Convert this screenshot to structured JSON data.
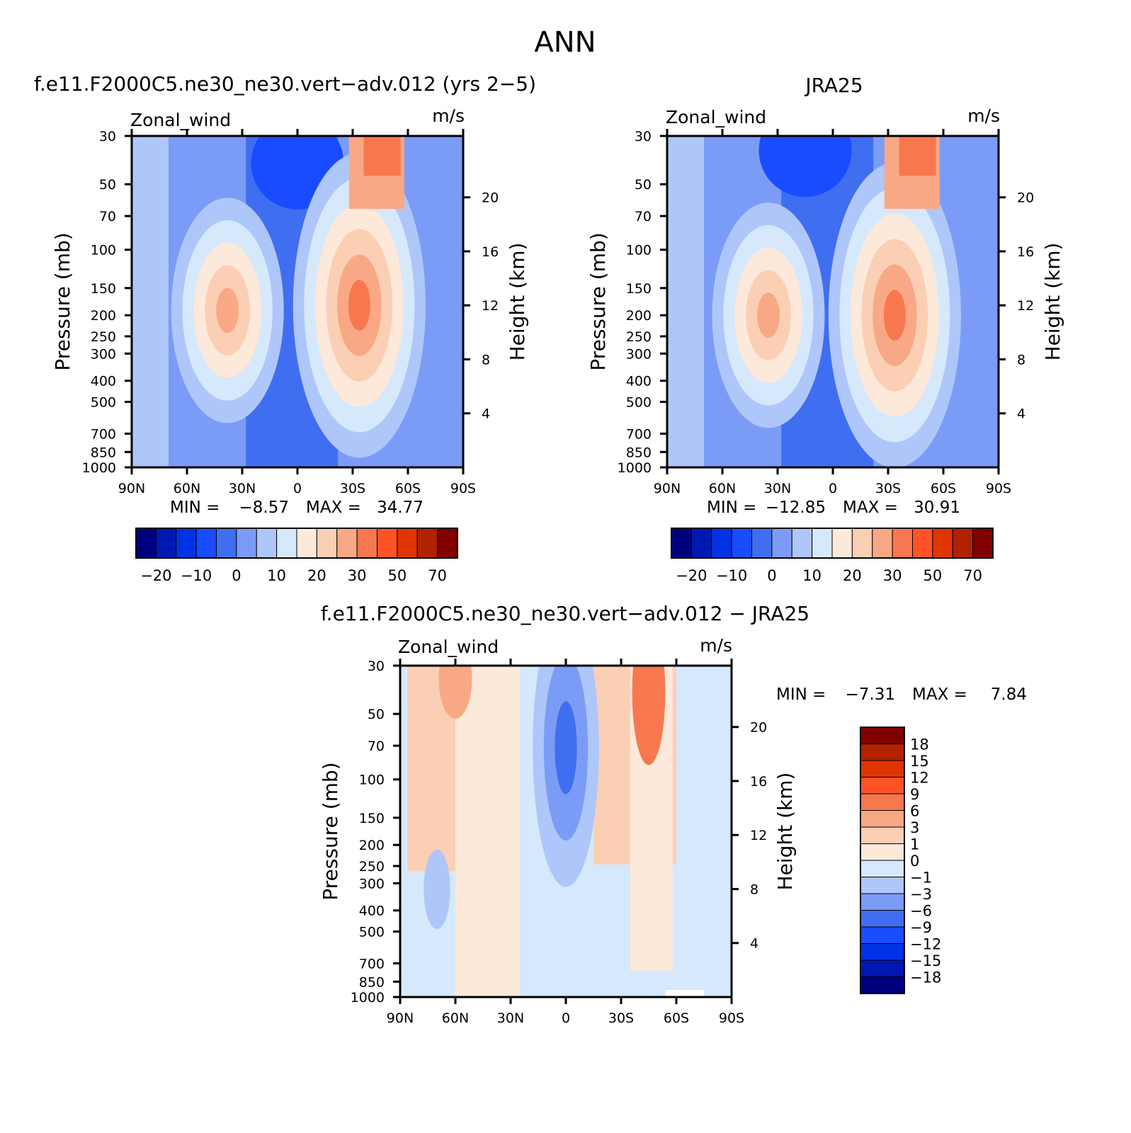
{
  "figure": {
    "main_title": "ANN",
    "colors": {
      "main_levels": [
        "#00007f",
        "#0018b2",
        "#0032e5",
        "#1a4cff",
        "#3f6ef0",
        "#7b9cf6",
        "#afc6fa",
        "#d6e8fb",
        "#fde9da",
        "#fbcfb4",
        "#f9a885",
        "#f7784f",
        "#ff5326",
        "#e03500",
        "#b02200",
        "#800000"
      ],
      "diff_levels": [
        "#00007f",
        "#0018b2",
        "#0032e5",
        "#1a4cff",
        "#3f6ef0",
        "#7b9cf6",
        "#afc6fa",
        "#d6e8fb",
        "#fde9da",
        "#fbcfb4",
        "#f9a885",
        "#f7784f",
        "#ff5326",
        "#e03500",
        "#b02200",
        "#800000"
      ]
    }
  },
  "chart_data": [
    {
      "id": "model",
      "type": "contour",
      "title": "f.e11.F2000C5.ne30_ne30.vert−adv.012 (yrs 2−5)",
      "left_label": "Zonal_wind",
      "right_label": "m/s",
      "xlabel": "",
      "ylabel": "Pressure (mb)",
      "y2label": "Height (km)",
      "x_ticks": [
        "90N",
        "60N",
        "30N",
        "0",
        "30S",
        "60S",
        "90S"
      ],
      "x_range": [
        90,
        -90
      ],
      "y_ticks": [
        30,
        50,
        70,
        100,
        150,
        200,
        250,
        300,
        400,
        500,
        700,
        850,
        1000
      ],
      "y_range": [
        1000,
        30
      ],
      "y_scale": "log",
      "y2_ticks": [
        4,
        8,
        12,
        16,
        20
      ],
      "stats": {
        "min_label": "MIN =",
        "min": "−8.57",
        "max_label": "MAX =",
        "max": "34.77"
      },
      "colorbar": {
        "orientation": "horizontal",
        "labels": [
          "−20",
          "−10",
          "0",
          "10",
          "20",
          "30",
          "50",
          "70"
        ]
      },
      "fields": {
        "jets": [
          {
            "lat": 38,
            "p": 190,
            "value": 22
          },
          {
            "lat": -30,
            "p": 180,
            "value": 34.77
          }
        ],
        "easterlies": [
          {
            "lat": 0,
            "p": 40,
            "value": -8.57
          }
        ]
      }
    },
    {
      "id": "obs",
      "type": "contour",
      "title": "JRA25",
      "left_label": "Zonal_wind",
      "right_label": "m/s",
      "xlabel": "",
      "ylabel": "Pressure (mb)",
      "y2label": "Height (km)",
      "x_ticks": [
        "90N",
        "60N",
        "30N",
        "0",
        "30S",
        "60S",
        "90S"
      ],
      "x_range": [
        90,
        -90
      ],
      "y_ticks": [
        30,
        50,
        70,
        100,
        150,
        200,
        250,
        300,
        400,
        500,
        700,
        850,
        1000
      ],
      "y_range": [
        1000,
        30
      ],
      "y_scale": "log",
      "y2_ticks": [
        4,
        8,
        12,
        16,
        20
      ],
      "stats": {
        "min_label": "MIN =",
        "min": "−12.85",
        "max_label": "MAX =",
        "max": "30.91"
      },
      "colorbar": {
        "orientation": "horizontal",
        "labels": [
          "−20",
          "−10",
          "0",
          "10",
          "20",
          "30",
          "50",
          "70"
        ]
      },
      "fields": {
        "jets": [
          {
            "lat": 35,
            "p": 200,
            "value": 22
          },
          {
            "lat": -30,
            "p": 200,
            "value": 30.91
          }
        ],
        "easterlies": [
          {
            "lat": 15,
            "p": 35,
            "value": -12.85
          }
        ]
      }
    },
    {
      "id": "diff",
      "type": "contour",
      "title": "f.e11.F2000C5.ne30_ne30.vert−adv.012 − JRA25",
      "left_label": "Zonal_wind",
      "right_label": "m/s",
      "xlabel": "",
      "ylabel": "Pressure (mb)",
      "y2label": "Height (km)",
      "x_ticks": [
        "90N",
        "60N",
        "30N",
        "0",
        "30S",
        "60S",
        "90S"
      ],
      "x_range": [
        90,
        -90
      ],
      "y_ticks": [
        30,
        50,
        70,
        100,
        150,
        200,
        250,
        300,
        400,
        500,
        700,
        850,
        1000
      ],
      "y_range": [
        1000,
        30
      ],
      "y_scale": "log",
      "y2_ticks": [
        4,
        8,
        12,
        16,
        20
      ],
      "stats": {
        "min_label": "MIN =",
        "min": "−7.31",
        "max_label": "MAX =",
        "max": "7.84"
      },
      "colorbar": {
        "orientation": "vertical",
        "labels": [
          "18",
          "15",
          "12",
          "9",
          "6",
          "3",
          "1",
          "0",
          "−1",
          "−3",
          "−6",
          "−9",
          "−12",
          "−15",
          "−18"
        ]
      },
      "fields": {
        "positive": [
          {
            "lat": -45,
            "p": 60,
            "value": 7.84
          },
          {
            "lat": 60,
            "p": 40,
            "value": 4
          }
        ],
        "negative": [
          {
            "lat": 0,
            "p": 60,
            "value": -7.31
          },
          {
            "lat": 70,
            "p": 320,
            "value": -2
          }
        ]
      }
    }
  ]
}
